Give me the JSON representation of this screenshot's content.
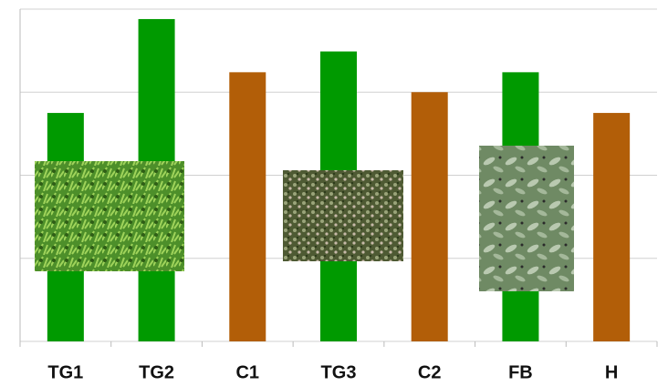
{
  "chart_data": {
    "type": "bar",
    "categories": [
      "TG1",
      "TG2",
      "C1",
      "TG3",
      "C2",
      "FB",
      "H"
    ],
    "values": [
      2.75,
      3.88,
      3.24,
      3.49,
      3.0,
      3.24,
      2.75
    ],
    "colors": [
      "#009a00",
      "#009a00",
      "#b25e08",
      "#009a00",
      "#b25e08",
      "#009a00",
      "#b25e08"
    ],
    "ylim": [
      0,
      4
    ],
    "yticks": [
      0,
      1,
      2,
      3,
      4
    ],
    "grid": true
  }
}
